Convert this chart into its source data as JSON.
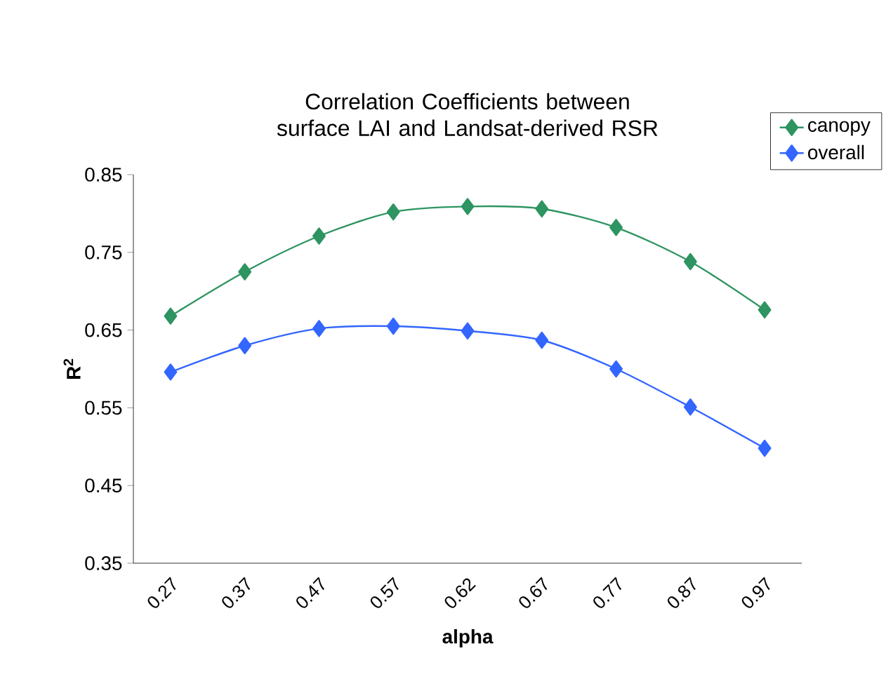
{
  "chart_data": {
    "type": "line",
    "title": "Correlation Coefficients between surface LAI and Landsat-derived RSR",
    "xlabel": "alpha",
    "ylabel": "R$^{2}$",
    "categories": [
      "0.27",
      "0.37",
      "0.47",
      "0.57",
      "0.62",
      "0.67",
      "0.77",
      "0.87",
      "0.97"
    ],
    "series": [
      {
        "name": "canopy",
        "color": "#2e9461",
        "values": [
          0.668,
          0.725,
          0.771,
          0.802,
          0.809,
          0.806,
          0.782,
          0.738,
          0.676
        ]
      },
      {
        "name": "overall",
        "color": "#3366ff",
        "values": [
          0.596,
          0.63,
          0.652,
          0.655,
          0.649,
          0.637,
          0.6,
          0.551,
          0.498
        ]
      }
    ],
    "ylim": [
      0.35,
      0.85
    ],
    "yticks": [
      0.35,
      0.45,
      0.55,
      0.65,
      0.75,
      0.85
    ],
    "grid": false,
    "legend": "top right",
    "marker": "diamond",
    "line_style": "solid"
  }
}
